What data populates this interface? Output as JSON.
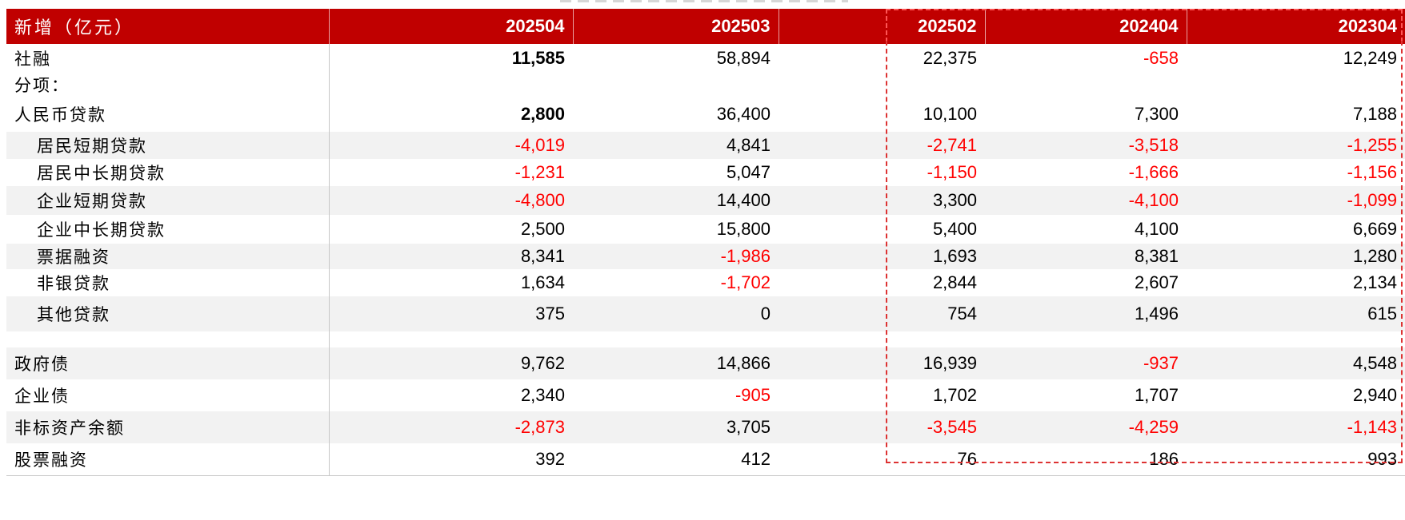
{
  "header": {
    "label": "新增（亿元）",
    "columns": [
      "202504",
      "202503",
      "202502",
      "202404",
      "202304"
    ]
  },
  "rows": [
    {
      "label": "社融",
      "values": [
        "11,585",
        "58,894",
        "22,375",
        "-658",
        "12,249"
      ]
    },
    {
      "label": "分项：",
      "values": [
        "",
        "",
        "",
        "",
        ""
      ]
    },
    {
      "label": "人民币贷款",
      "values": [
        "2,800",
        "36,400",
        "10,100",
        "7,300",
        "7,188"
      ]
    },
    {
      "label": "居民短期贷款",
      "values": [
        "-4,019",
        "4,841",
        "-2,741",
        "-3,518",
        "-1,255"
      ]
    },
    {
      "label": "居民中长期贷款",
      "values": [
        "-1,231",
        "5,047",
        "-1,150",
        "-1,666",
        "-1,156"
      ]
    },
    {
      "label": "企业短期贷款",
      "values": [
        "-4,800",
        "14,400",
        "3,300",
        "-4,100",
        "-1,099"
      ]
    },
    {
      "label": "企业中长期贷款",
      "values": [
        "2,500",
        "15,800",
        "5,400",
        "4,100",
        "6,669"
      ]
    },
    {
      "label": "票据融资",
      "values": [
        "8,341",
        "-1,986",
        "1,693",
        "8,381",
        "1,280"
      ]
    },
    {
      "label": "非银贷款",
      "values": [
        "1,634",
        "-1,702",
        "2,844",
        "2,607",
        "2,134"
      ]
    },
    {
      "label": "其他贷款",
      "values": [
        "375",
        "0",
        "754",
        "1,496",
        "615"
      ]
    },
    {
      "label": "政府债",
      "values": [
        "9,762",
        "14,866",
        "16,939",
        "-937",
        "4,548"
      ]
    },
    {
      "label": "企业债",
      "values": [
        "2,340",
        "-905",
        "1,702",
        "1,707",
        "2,940"
      ]
    },
    {
      "label": "非标资产余额",
      "values": [
        "-2,873",
        "3,705",
        "-3,545",
        "-4,259",
        "-1,143"
      ]
    },
    {
      "label": "股票融资",
      "values": [
        "392",
        "412",
        "76",
        "186",
        "993"
      ]
    }
  ],
  "colors": {
    "header_bg": "#c00000",
    "negative": "#ff0000",
    "highlight_border": "#dd3333"
  }
}
